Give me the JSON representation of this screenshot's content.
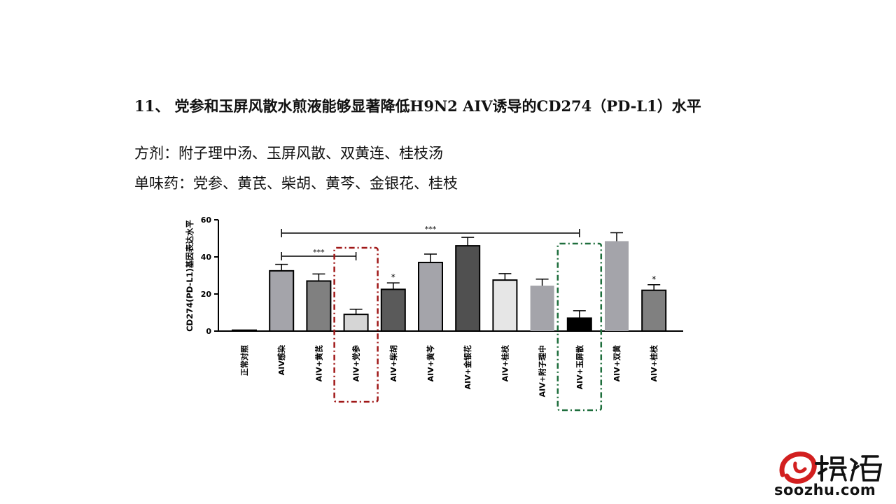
{
  "heading": "11、 党参和玉屏风散水煎液能够显著降低H9N2 AIV诱导的CD274（PD-L1）水平",
  "line1": "方剂：附子理中汤、玉屏风散、双黄连、桂枝汤",
  "line2": "单味药：党参、黄芪、柴胡、黄芩、金银花、桂枝",
  "watermark": {
    "logo_text": "搜猪",
    "domain": "soozhu.com"
  },
  "chart_data": {
    "type": "bar",
    "ylabel": "CD274(PD-L1)基因表达水平",
    "ylim": [
      0,
      60
    ],
    "yticks": [
      0,
      20,
      40,
      60
    ],
    "grid": false,
    "categories": [
      "正常对照",
      "AIV感染",
      "AIV+黄芪",
      "AIV+党参",
      "AIV+柴胡",
      "AIV+黄芩",
      "AIV+金银花",
      "AIV+桂枝",
      "AIV+附子理中",
      "AIV+玉屏散",
      "AIV+双黄",
      "AIV+桂枝"
    ],
    "values": [
      0.5,
      32.5,
      27,
      9,
      22.5,
      37,
      46,
      27.5,
      24.5,
      7,
      48.5,
      22
    ],
    "errors": [
      0,
      3.5,
      3.8,
      2.8,
      3.5,
      4.5,
      4.5,
      3.5,
      3.5,
      4,
      4.5,
      3
    ],
    "colors": [
      "#1a1a1a",
      "#a4a4aa",
      "#808080",
      "#d6d6d6",
      "#5a5a5a",
      "#a4a4aa",
      "#505050",
      "#e6e6e6",
      "#a4a4aa",
      "#000000",
      "#a4a4aa",
      "#808080"
    ],
    "markers": [
      "",
      "",
      "",
      "",
      "*",
      "",
      "",
      "",
      "",
      "",
      "",
      "*"
    ],
    "brackets": [
      {
        "from": 1,
        "to": 3,
        "label": "***"
      },
      {
        "from": 1,
        "to": 9,
        "label": "***"
      }
    ],
    "highlights": [
      {
        "index": 3,
        "color": "#a01818"
      },
      {
        "index": 9,
        "color": "#1e6e3c"
      }
    ]
  }
}
